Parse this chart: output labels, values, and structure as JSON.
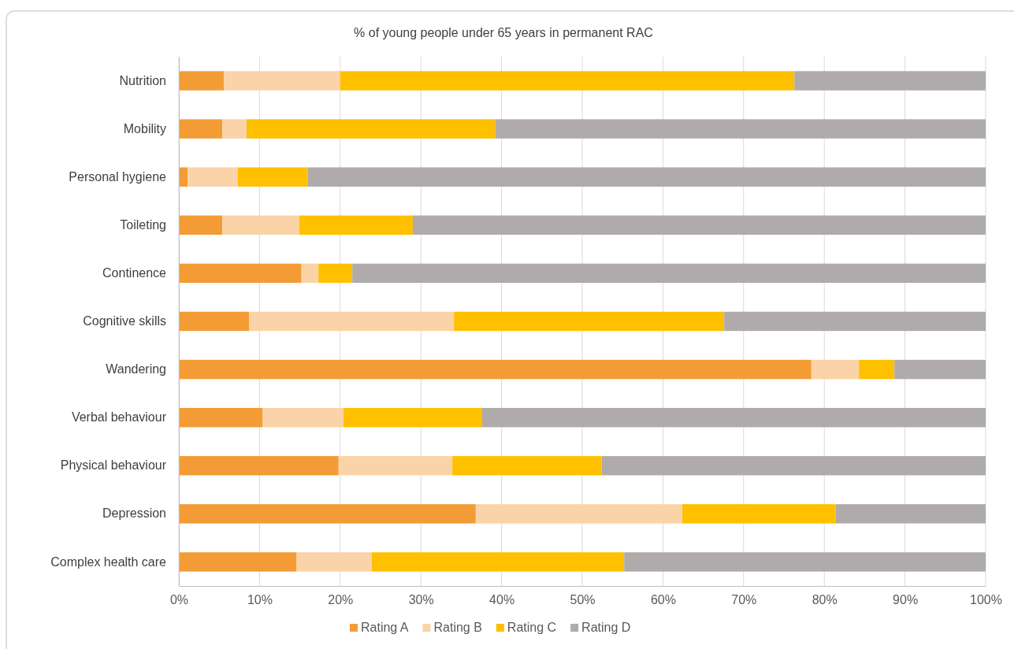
{
  "chart_data": {
    "type": "bar",
    "orientation": "horizontal",
    "stacked": true,
    "title": "% of young people under 65 years in permanent RAC",
    "categories": [
      "Nutrition",
      "Mobility",
      "Personal hygiene",
      "Toileting",
      "Continence",
      "Cognitive skills",
      "Wandering",
      "Verbal behaviour",
      "Physical behaviour",
      "Depression",
      "Complex health care"
    ],
    "series": [
      {
        "name": "Rating A",
        "color": "#f39c35",
        "values": [
          5.6,
          5.4,
          1.1,
          5.4,
          15.2,
          8.7,
          78.4,
          10.4,
          19.8,
          36.8,
          14.6
        ]
      },
      {
        "name": "Rating B",
        "color": "#fad3a8",
        "values": [
          14.4,
          3.0,
          6.2,
          9.5,
          2.1,
          25.4,
          5.9,
          10.0,
          14.1,
          25.6,
          9.3
        ]
      },
      {
        "name": "Rating C",
        "color": "#ffc000",
        "values": [
          56.3,
          30.8,
          8.7,
          14.1,
          4.2,
          33.5,
          4.4,
          17.2,
          18.5,
          19.0,
          31.3
        ]
      },
      {
        "name": "Rating D",
        "color": "#afabaa",
        "values": [
          23.7,
          60.8,
          84.0,
          71.0,
          78.5,
          32.4,
          11.3,
          62.4,
          47.6,
          18.6,
          44.8
        ]
      }
    ],
    "xlim": [
      0,
      100
    ],
    "xticks": [
      {
        "value": 0,
        "label": "0%"
      },
      {
        "value": 10,
        "label": "10%"
      },
      {
        "value": 20,
        "label": "20%"
      },
      {
        "value": 30,
        "label": "30%"
      },
      {
        "value": 40,
        "label": "40%"
      },
      {
        "value": 50,
        "label": "50%"
      },
      {
        "value": 60,
        "label": "60%"
      },
      {
        "value": 70,
        "label": "70%"
      },
      {
        "value": 80,
        "label": "80%"
      },
      {
        "value": 90,
        "label": "90%"
      },
      {
        "value": 100,
        "label": "100%"
      }
    ],
    "grid": "x",
    "legend": "bottom"
  }
}
